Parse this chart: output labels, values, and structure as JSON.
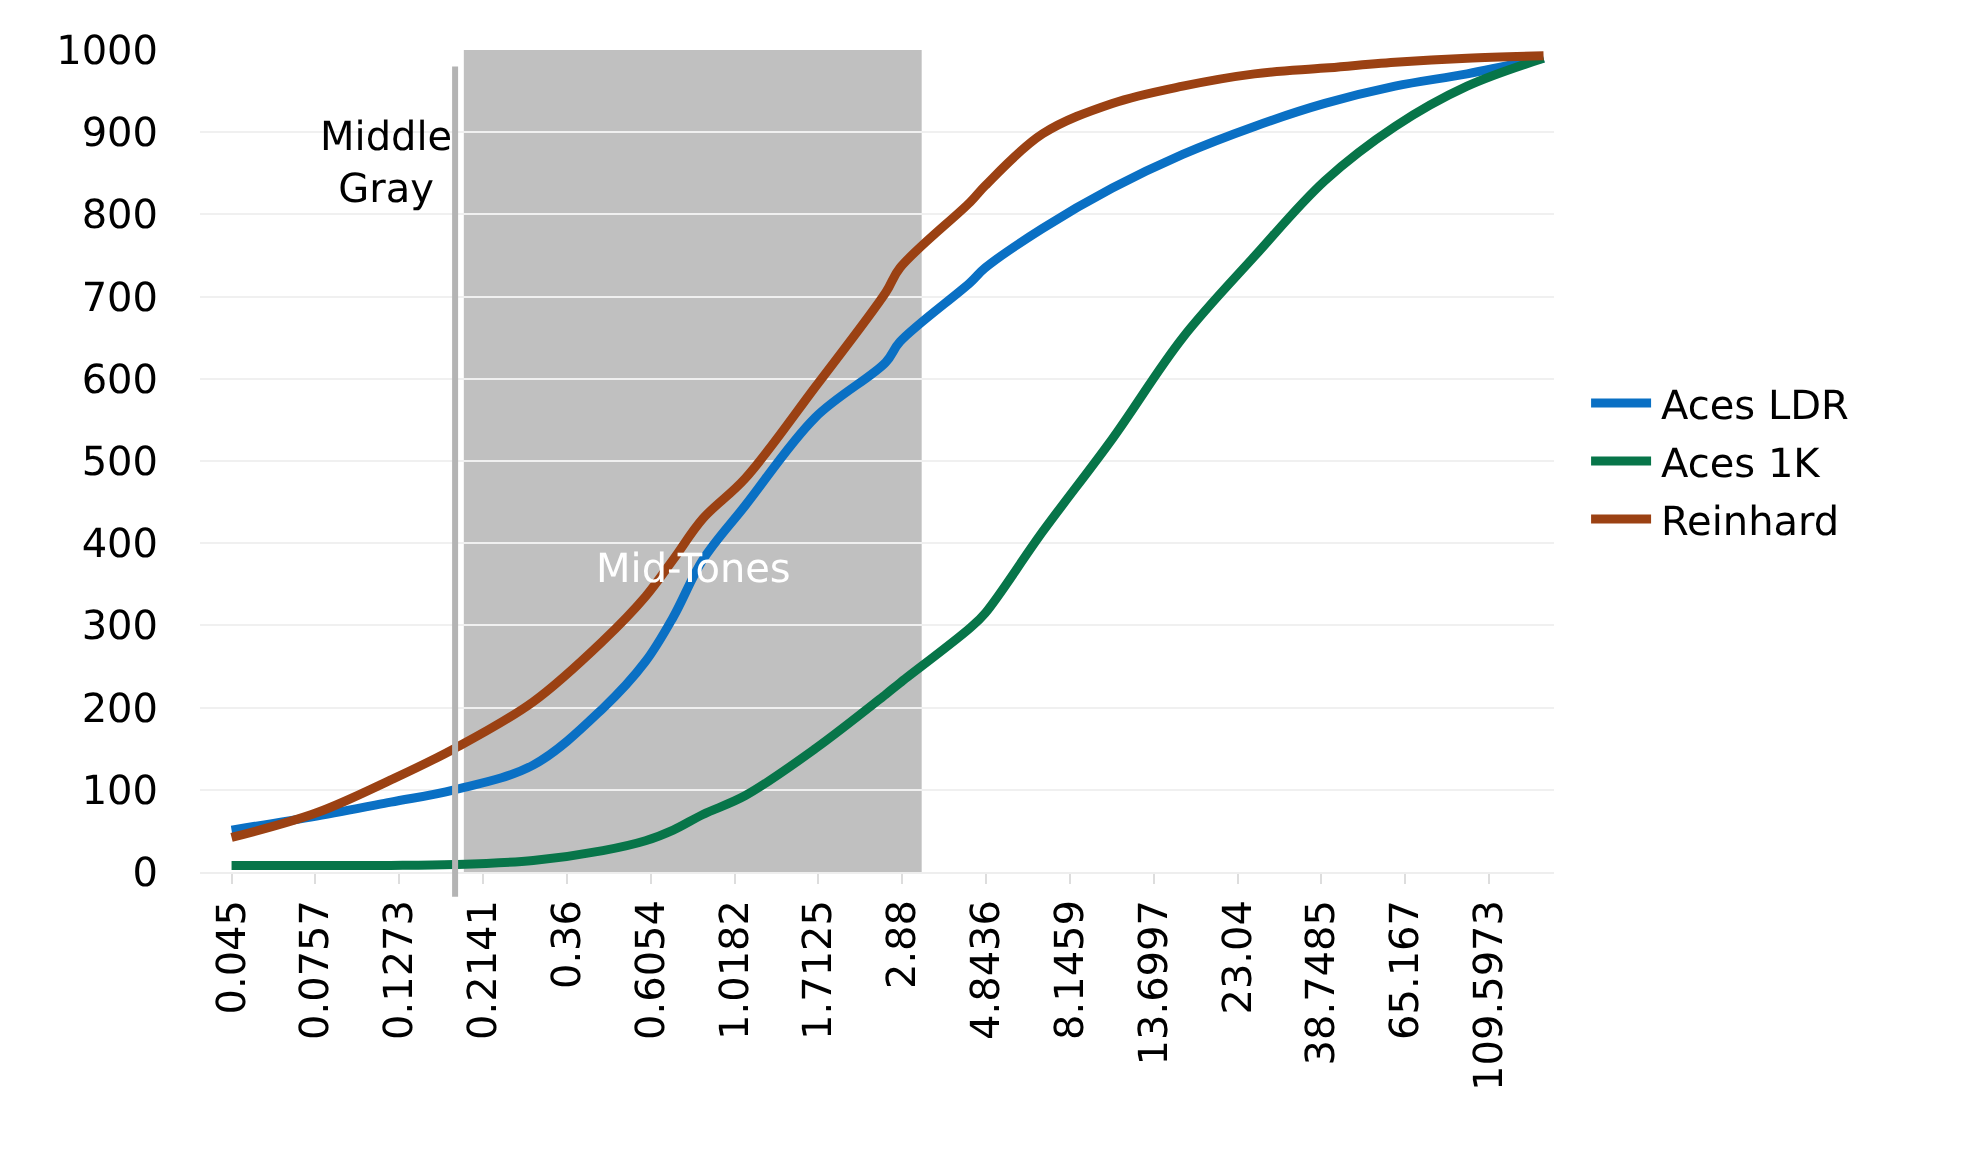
{
  "chart_data": {
    "type": "line",
    "log": "x",
    "grid": "y",
    "legend": "right",
    "marker": "none",
    "line_style": "solid",
    "x": [
      0.045,
      0.0762,
      0.1208,
      0.179,
      0.292,
      0.45,
      0.586,
      0.696,
      0.837,
      1.089,
      1.68,
      2.6,
      2.84,
      4.39,
      4.82,
      6.88,
      10.6,
      16.4,
      25.6,
      39.6,
      61.2,
      95.7,
      153.7
    ],
    "series": [
      {
        "name": "Aces LDR",
        "color": "#0a70c4",
        "values": [
          51,
          68,
          85,
          100,
          130,
          199,
          256,
          310,
          380,
          446,
          553,
          620,
          645,
          717,
          735,
          783,
          832,
          873,
          907,
          935,
          956,
          971,
          990
        ]
      },
      {
        "name": "Aces 1K",
        "color": "#077549",
        "values": [
          8,
          8,
          8,
          9,
          14,
          26,
          38,
          51,
          70,
          93,
          150,
          216,
          230,
          297,
          315,
          414,
          527,
          650,
          749,
          841,
          907,
          956,
          990
        ]
      },
      {
        "name": "Reinhard",
        "color": "#9b4113",
        "values": [
          42,
          72,
          112,
          150,
          207,
          281,
          335,
          380,
          430,
          479,
          590,
          705,
          735,
          815,
          835,
          898,
          935,
          956,
          971,
          978,
          985,
          990,
          993
        ]
      }
    ],
    "xlim": [
      0.037,
      164
    ],
    "xticks": [
      0.045,
      0.0757,
      0.1273,
      0.2141,
      0.36,
      0.6054,
      1.0182,
      1.7125,
      2.88,
      4.8436,
      8.1459,
      13.6997,
      23.04,
      38.7485,
      65.167,
      109.5973
    ],
    "ylim": [
      0,
      1000
    ],
    "yticks": [
      0,
      100,
      200,
      300,
      400,
      500,
      600,
      700,
      800,
      900,
      1000
    ],
    "ref_lines": [
      {
        "axis": "x",
        "value": 0.18,
        "label": "Middle Gray",
        "color": "#b4b4b4"
      }
    ],
    "bands": [
      {
        "axis": "x",
        "from": 0.19,
        "to": 3.25,
        "label": "Mid-Tones",
        "color": "#c0c0c0"
      }
    ]
  }
}
